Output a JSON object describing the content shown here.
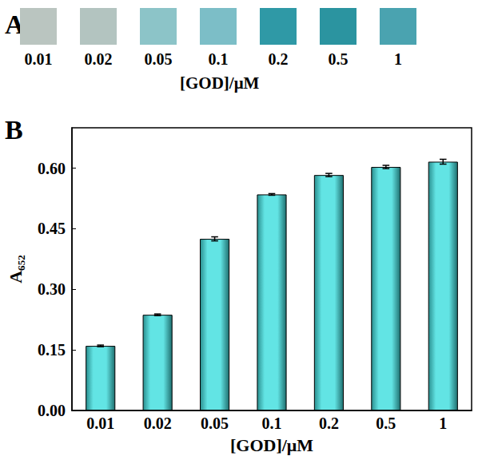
{
  "panel_letters": [
    "A",
    "B"
  ],
  "color_panel": {
    "labels": [
      "0.01",
      "0.02",
      "0.05",
      "0.1",
      "0.2",
      "0.5",
      "1"
    ],
    "colors": [
      "#bac5c0",
      "#b3c4c0",
      "#8cc4c8",
      "#7cbec7",
      "#2f99a6",
      "#2b94a0",
      "#4aa3b0"
    ],
    "xlabel": "[GOD]/μM"
  },
  "chart_data": {
    "type": "bar",
    "categories": [
      "0.01",
      "0.02",
      "0.05",
      "0.1",
      "0.2",
      "0.5",
      "1"
    ],
    "values": [
      0.16,
      0.237,
      0.425,
      0.535,
      0.583,
      0.603,
      0.616
    ],
    "errors": [
      0.002,
      0.002,
      0.005,
      0.002,
      0.004,
      0.004,
      0.006
    ],
    "color": "#62e4e4",
    "xlabel": "[GOD]/μM",
    "ylabel": "A₆₅₂",
    "ylim": [
      0,
      0.7
    ],
    "yticks": [
      {
        "value": 0,
        "label": "0.00"
      },
      0.15,
      {
        "value": 0.3,
        "label": "0.30"
      },
      0.45,
      {
        "value": 0.6,
        "label": "0.60"
      }
    ],
    "grid": false
  }
}
